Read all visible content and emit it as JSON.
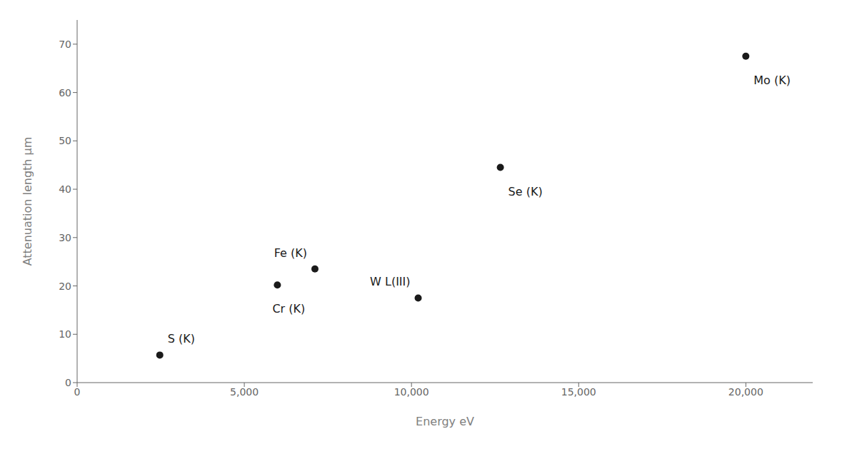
{
  "chart_data": {
    "type": "scatter",
    "x": [
      2472,
      5989,
      7112,
      10200,
      12658,
      19999
    ],
    "values": [
      5.7,
      20.2,
      23.5,
      17.5,
      44.5,
      67.5
    ],
    "annotations": [
      "S (K)",
      "Cr (K)",
      "Fe (K)",
      "W L(III)",
      "Se (K)",
      "Mo (K)"
    ],
    "xlabel": "Energy eV",
    "ylabel": "Attenuation length μm",
    "xlim": [
      0,
      22000
    ],
    "ylim": [
      0,
      75
    ],
    "xticks": [
      0,
      {
        "value": 5000,
        "label": "5,000"
      },
      {
        "value": 10000,
        "label": "10,000"
      },
      {
        "value": 15000,
        "label": "15,000"
      },
      {
        "value": 20000,
        "label": "20,000"
      }
    ],
    "yticks": [
      0,
      10,
      20,
      30,
      40,
      50,
      60,
      70
    ],
    "color": "#1a1a1a",
    "grid": false
  }
}
